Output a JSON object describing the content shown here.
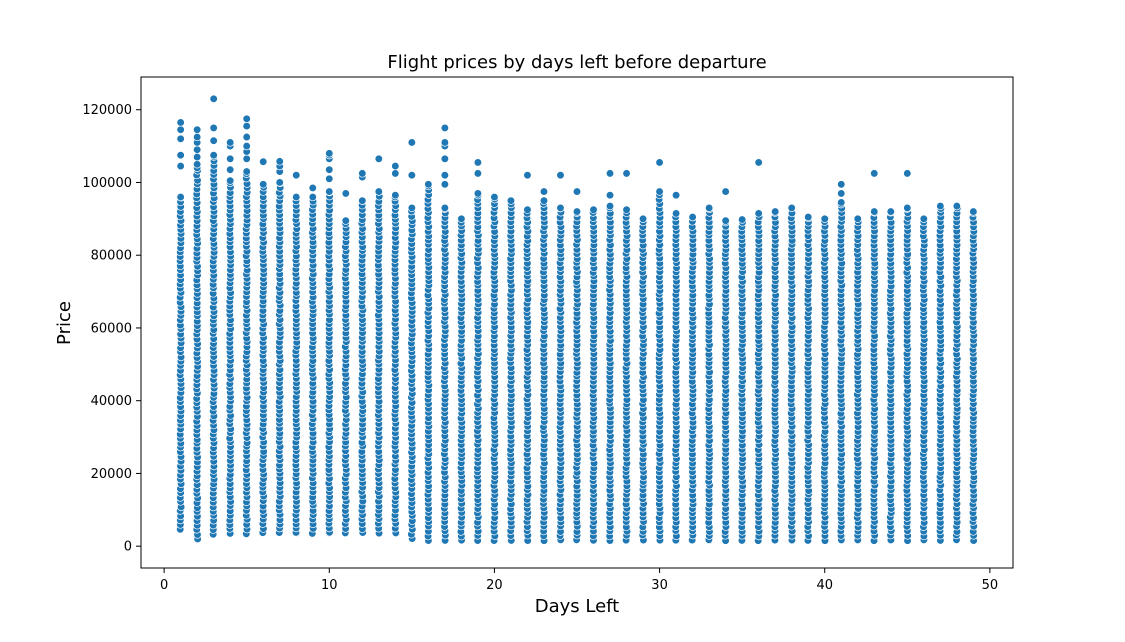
{
  "chart_data": {
    "type": "scatter",
    "title": "Flight prices by days left before departure",
    "xlabel": "Days Left",
    "ylabel": "Price",
    "xlim": [
      -1.4,
      51.4
    ],
    "ylim": [
      -6000,
      129000
    ],
    "x_ticks": [
      0,
      10,
      20,
      30,
      40,
      50
    ],
    "y_ticks": [
      0,
      20000,
      40000,
      60000,
      80000,
      100000,
      120000
    ],
    "grid": false,
    "legend": "none",
    "colors": {
      "marker": "#1f77b4",
      "marker_edge": "#ffffff",
      "light_marker": "#c9dcee"
    },
    "columns": [
      {
        "x": 1,
        "min": 4500,
        "max": 96000,
        "outliers": [
          104500,
          107500,
          112000,
          114500,
          116500
        ]
      },
      {
        "x": 2,
        "min": 1800,
        "max": 104000,
        "outliers": [
          105000,
          107000,
          109000,
          111000,
          112500,
          114500
        ]
      },
      {
        "x": 3,
        "min": 3200,
        "max": 107500,
        "outliers": [
          111500,
          115000,
          123000
        ]
      },
      {
        "x": 4,
        "min": 3400,
        "max": 100500,
        "outliers": [
          103500,
          106500,
          110000,
          111000
        ]
      },
      {
        "x": 5,
        "min": 3400,
        "max": 103000,
        "outliers": [
          106500,
          108500,
          110000,
          112500,
          115500,
          117500
        ]
      },
      {
        "x": 6,
        "min": 3500,
        "max": 99500,
        "outliers": [
          105700
        ]
      },
      {
        "x": 7,
        "min": 3500,
        "max": 100000,
        "outliers": [
          103000,
          104500,
          105800
        ]
      },
      {
        "x": 8,
        "min": 3500,
        "max": 96000,
        "outliers": [
          102000
        ]
      },
      {
        "x": 9,
        "min": 3500,
        "max": 96000,
        "outliers": [
          98500
        ]
      },
      {
        "x": 10,
        "min": 3500,
        "max": 97500,
        "outliers": [
          101000,
          103500,
          106500,
          107500,
          108000
        ]
      },
      {
        "x": 11,
        "min": 3500,
        "max": 89500,
        "outliers": [
          97000
        ]
      },
      {
        "x": 12,
        "min": 3500,
        "max": 95000,
        "outliers": [
          101500,
          102500
        ]
      },
      {
        "x": 13,
        "min": 3500,
        "max": 97500,
        "outliers": [
          106500
        ]
      },
      {
        "x": 14,
        "min": 3500,
        "max": 96500,
        "outliers": [
          102500,
          104500
        ]
      },
      {
        "x": 15,
        "min": 1900,
        "max": 93000,
        "outliers": [
          102000,
          111000
        ]
      },
      {
        "x": 16,
        "min": 1500,
        "max": 99500,
        "outliers": []
      },
      {
        "x": 17,
        "min": 1500,
        "max": 93000,
        "outliers": [
          99500,
          102000,
          106500,
          110000,
          111000,
          115000
        ]
      },
      {
        "x": 18,
        "min": 1500,
        "max": 90000,
        "outliers": []
      },
      {
        "x": 19,
        "min": 1500,
        "max": 97000,
        "outliers": [
          102500,
          105500
        ]
      },
      {
        "x": 20,
        "min": 1500,
        "max": 96000,
        "outliers": []
      },
      {
        "x": 21,
        "min": 1500,
        "max": 95000,
        "outliers": []
      },
      {
        "x": 22,
        "min": 1500,
        "max": 92500,
        "outliers": [
          102000
        ]
      },
      {
        "x": 23,
        "min": 1500,
        "max": 95000,
        "outliers": [
          97500
        ]
      },
      {
        "x": 24,
        "min": 1500,
        "max": 93000,
        "outliers": [
          102000
        ]
      },
      {
        "x": 25,
        "min": 1500,
        "max": 92000,
        "outliers": [
          97500
        ]
      },
      {
        "x": 26,
        "min": 1500,
        "max": 92500,
        "outliers": []
      },
      {
        "x": 27,
        "min": 1500,
        "max": 93500,
        "outliers": [
          96500,
          102500
        ]
      },
      {
        "x": 28,
        "min": 1500,
        "max": 92500,
        "outliers": [
          102500
        ]
      },
      {
        "x": 29,
        "min": 1500,
        "max": 90000,
        "outliers": []
      },
      {
        "x": 30,
        "min": 1500,
        "max": 97500,
        "outliers": [
          105500
        ]
      },
      {
        "x": 31,
        "min": 1500,
        "max": 91500,
        "outliers": [
          96500
        ]
      },
      {
        "x": 32,
        "min": 1500,
        "max": 90500,
        "outliers": []
      },
      {
        "x": 33,
        "min": 1500,
        "max": 93000,
        "outliers": []
      },
      {
        "x": 34,
        "min": 1500,
        "max": 89500,
        "outliers": [
          97500
        ]
      },
      {
        "x": 35,
        "min": 1500,
        "max": 89800,
        "outliers": []
      },
      {
        "x": 36,
        "min": 1500,
        "max": 91500,
        "outliers": [
          105500
        ]
      },
      {
        "x": 37,
        "min": 1500,
        "max": 92000,
        "outliers": []
      },
      {
        "x": 38,
        "min": 1500,
        "max": 93000,
        "outliers": []
      },
      {
        "x": 39,
        "min": 1500,
        "max": 90500,
        "outliers": []
      },
      {
        "x": 40,
        "min": 1500,
        "max": 90000,
        "outliers": []
      },
      {
        "x": 41,
        "min": 1500,
        "max": 94500,
        "outliers": [
          97000,
          99500
        ]
      },
      {
        "x": 42,
        "min": 1500,
        "max": 90000,
        "outliers": []
      },
      {
        "x": 43,
        "min": 1500,
        "max": 92000,
        "outliers": [
          102500
        ]
      },
      {
        "x": 44,
        "min": 1500,
        "max": 92000,
        "outliers": []
      },
      {
        "x": 45,
        "min": 1500,
        "max": 93000,
        "outliers": [
          102500
        ]
      },
      {
        "x": 46,
        "min": 1500,
        "max": 90000,
        "outliers": []
      },
      {
        "x": 47,
        "min": 1500,
        "max": 93500,
        "outliers": []
      },
      {
        "x": 48,
        "min": 1500,
        "max": 93500,
        "outliers": []
      },
      {
        "x": 49,
        "min": 1500,
        "max": 92000,
        "outliers": []
      }
    ]
  }
}
